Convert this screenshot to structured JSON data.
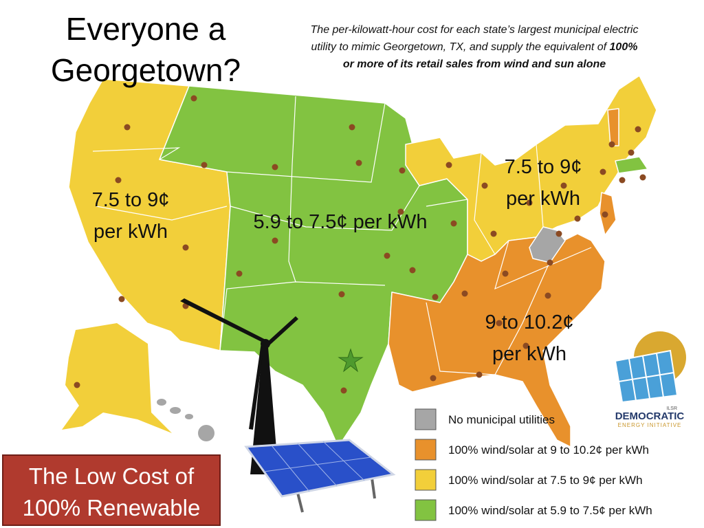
{
  "title": [
    "Everyone a",
    "Georgetown?"
  ],
  "subtitle": [
    [
      {
        "text": "The per-kilowatt-hour cost for each state’s largest municipal electric",
        "bold": false
      }
    ],
    [
      {
        "text": "utility to mimic Georgetown, TX, and supply the equivalent of ",
        "bold": false
      },
      {
        "text": "100%",
        "bold": true
      }
    ],
    [
      {
        "text": "or more of its retail sales from wind and sun alone",
        "bold": true
      }
    ]
  ],
  "region_labels": [
    {
      "lines": [
        "7.5 to 9¢",
        "per kWh"
      ]
    },
    {
      "lines": [
        "5.9 to 7.5¢ per kWh"
      ]
    },
    {
      "lines": [
        "7.5 to 9¢",
        "per kWh"
      ]
    },
    {
      "lines": [
        "9 to 10.2¢",
        "per kWh"
      ]
    }
  ],
  "legend": [
    {
      "label": "No municipal utilities",
      "color": "#a6a6a6"
    },
    {
      "label": "100% wind/solar at 9 to 10.2¢ per kWh",
      "color": "#e8912c"
    },
    {
      "label": "100% wind/solar at 7.5 to 9¢ per kWh",
      "color": "#f2cf3a"
    },
    {
      "label": "100% wind/solar at 5.9 to 7.5¢ per kWh",
      "color": "#82c341"
    }
  ],
  "banner": [
    "The Low Cost of",
    "100% Renewable"
  ],
  "logo": {
    "small": "ILSR",
    "name": "DEMOCRATIC",
    "sub": "ENERGY INITIATIVE"
  }
}
